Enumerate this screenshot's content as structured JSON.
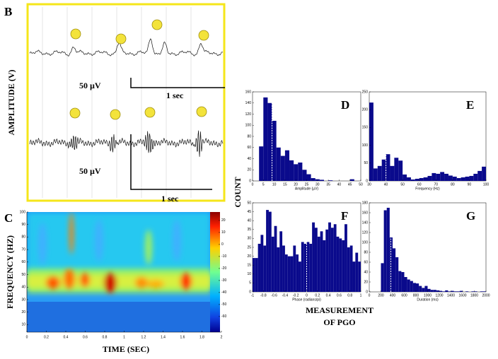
{
  "figure": {
    "panel_b": "B",
    "panel_c": "C",
    "amplitude_label": "AMPLITUDE (V)",
    "scale_top_uv": "50 µV",
    "scale_top_sec": "1 sec",
    "scale_bottom_uv": "50 µV",
    "scale_bottom_sec": "1 sec",
    "frequency_label": "FREQUENCY (HZ)",
    "time_label": "TIME (SEC)",
    "count_label": "COUNT",
    "measurement_label": "MEASUREMENT",
    "measurement_label_2": "OF PGO"
  },
  "chart_data": [
    {
      "type": "heatmap",
      "xlim": [
        0,
        2
      ],
      "ylim": [
        4,
        100
      ],
      "xticks": [
        0,
        0.2,
        0.4,
        0.6,
        0.8,
        1,
        1.2,
        1.4,
        1.6,
        1.8,
        2
      ],
      "yticks": [
        10,
        20,
        30,
        40,
        50,
        60,
        70,
        80,
        90,
        100
      ],
      "colorbar_lim": [
        -73,
        27
      ],
      "colorbar_ticks": [
        20,
        10,
        0,
        -10,
        -20,
        -30,
        -40,
        -50,
        -60
      ]
    },
    {
      "type": "histogram",
      "title": "D",
      "x_label": "Amplitude (µV)",
      "color": "#0a0a8c",
      "bins": [
        3,
        5,
        7,
        9,
        11,
        13,
        15,
        17,
        19,
        21,
        23,
        25,
        27,
        29,
        31,
        33,
        35,
        37,
        39,
        41,
        43,
        45,
        47
      ],
      "counts": [
        62,
        150,
        140,
        108,
        60,
        45,
        55,
        37,
        30,
        33,
        20,
        12,
        5,
        3,
        2,
        0,
        1,
        0,
        0,
        0,
        0,
        3
      ],
      "mean_line": 9,
      "xlim": [
        0,
        50
      ],
      "xticks": [
        0,
        5,
        10,
        15,
        20,
        25,
        30,
        35,
        40,
        45,
        50
      ],
      "ylim": [
        0,
        160
      ],
      "yticks": [
        0,
        20,
        40,
        60,
        80,
        100,
        120,
        140,
        160
      ]
    },
    {
      "type": "histogram",
      "title": "E",
      "x_label": "Frequency (Hz)",
      "color": "#0a0a8c",
      "bins": [
        30,
        32.5,
        35,
        37.5,
        40,
        42.5,
        45,
        47.5,
        50,
        52.5,
        55,
        57.5,
        60,
        62.5,
        65,
        67.5,
        70,
        72.5,
        75,
        77.5,
        80,
        82.5,
        85,
        87.5,
        90,
        92.5,
        95,
        97.5,
        100
      ],
      "counts": [
        220,
        35,
        42,
        60,
        75,
        42,
        65,
        57,
        18,
        10,
        4,
        6,
        8,
        10,
        14,
        22,
        20,
        25,
        20,
        15,
        12,
        8,
        10,
        12,
        14,
        20,
        28,
        40
      ],
      "mean_line": 40,
      "xlim": [
        30,
        100
      ],
      "xticks": [
        30,
        40,
        50,
        60,
        70,
        80,
        90,
        100
      ],
      "ylim": [
        0,
        250
      ],
      "yticks": [
        0,
        50,
        100,
        150,
        200,
        250
      ]
    },
    {
      "type": "histogram",
      "title": "F",
      "x_label": "Phase (radians/pi)",
      "color": "#0a0a8c",
      "bins": [
        -1,
        -0.95,
        -0.9,
        -0.85,
        -0.8,
        -0.75,
        -0.7,
        -0.65,
        -0.6,
        -0.55,
        -0.5,
        -0.45,
        -0.4,
        -0.35,
        -0.3,
        -0.25,
        -0.2,
        -0.15,
        -0.1,
        -0.05,
        0,
        0.05,
        0.1,
        0.15,
        0.2,
        0.25,
        0.3,
        0.35,
        0.4,
        0.45,
        0.5,
        0.55,
        0.6,
        0.65,
        0.7,
        0.75,
        0.8,
        0.85,
        0.9,
        0.95,
        1
      ],
      "counts": [
        19,
        19,
        27,
        32,
        26,
        46,
        45,
        31,
        37,
        25,
        34,
        26,
        21,
        20,
        20,
        26,
        21,
        17,
        28,
        27,
        28,
        27,
        39,
        36,
        31,
        34,
        29,
        35,
        39,
        36,
        38,
        31,
        30,
        29,
        38,
        25,
        26,
        17,
        22,
        17
      ],
      "mean_line": 0,
      "xlim": [
        -1,
        1
      ],
      "xticks": [
        -1,
        -0.8,
        -0.6,
        -0.4,
        -0.2,
        0,
        0.2,
        0.4,
        0.6,
        0.8,
        1
      ],
      "ylim": [
        0,
        50
      ],
      "yticks": [
        0,
        5,
        10,
        15,
        20,
        25,
        30,
        35,
        40,
        45,
        50
      ]
    },
    {
      "type": "histogram",
      "title": "G",
      "x_label": "Duration (ms)",
      "color": "#0a0a8c",
      "bins": [
        200,
        250,
        300,
        350,
        400,
        450,
        500,
        550,
        600,
        650,
        700,
        750,
        800,
        850,
        900,
        950,
        1000,
        1050,
        1100,
        1150,
        1200,
        1250,
        1300,
        1350,
        1400,
        1450,
        1500,
        1550,
        1600,
        1650,
        1700,
        1750,
        1800,
        1850,
        1900,
        1950,
        2000
      ],
      "counts": [
        58,
        165,
        170,
        110,
        88,
        70,
        42,
        40,
        30,
        25,
        22,
        18,
        17,
        12,
        8,
        12,
        6,
        4,
        4,
        3,
        2,
        1,
        3,
        1,
        2,
        1,
        1,
        2,
        0,
        1,
        0,
        1,
        1,
        0,
        1,
        1
      ],
      "mean_line": 370,
      "xlim": [
        0,
        2000
      ],
      "xticks": [
        0,
        200,
        400,
        600,
        800,
        1000,
        1200,
        1400,
        1600,
        1800,
        2000
      ],
      "ylim": [
        0,
        180
      ],
      "yticks": [
        0,
        20,
        40,
        60,
        80,
        100,
        120,
        140,
        160,
        180
      ]
    }
  ]
}
